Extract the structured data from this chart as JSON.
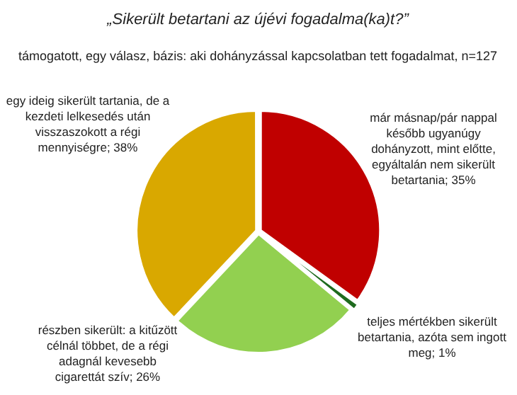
{
  "chart_data": {
    "type": "pie",
    "title": "„Sikerült betartani az újévi fogadalma(ka)t?”",
    "subtitle": "támogatott, egy válasz, bázis: aki dohányzással kapcsolatban tett fogadalmat, n=127",
    "categories": [
      "már másnap/pár nappal később ugyanúgy dohányzott, mint előtte, egyáltalán nem sikerült betartania",
      "teljes mértékben sikerült betartania, azóta sem ingott meg",
      "részben sikerült: a kitűzött célnál többet, de a régi adagnál kevesebb cigarettát szív",
      "egy ideig sikerült tartania, de a kezdeti lelkesedés után visszaszokott a régi mennyiségre"
    ],
    "values": [
      35,
      1,
      26,
      38
    ],
    "value_labels": [
      "35%",
      "1%",
      "26%",
      "38%"
    ],
    "colors": [
      "#c00000",
      "#1e6b1e",
      "#92d050",
      "#d9a800"
    ],
    "legend": false
  }
}
